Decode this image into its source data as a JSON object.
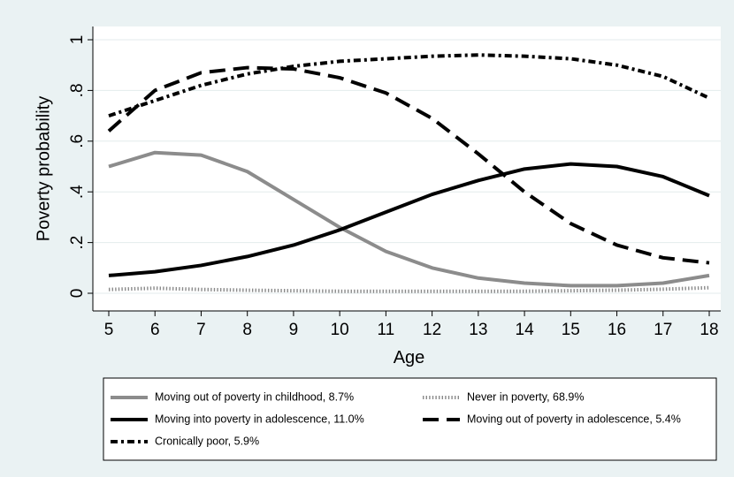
{
  "chart_data": {
    "type": "line",
    "title": "",
    "xlabel": "Age",
    "ylabel": "Poverty probability",
    "xlim": [
      5,
      18
    ],
    "ylim": [
      0,
      1
    ],
    "x_ticks": [
      "5",
      "6",
      "7",
      "8",
      "9",
      "10",
      "11",
      "12",
      "13",
      "14",
      "15",
      "16",
      "17",
      "18"
    ],
    "y_ticks": [
      {
        "value": 0,
        "label": "0"
      },
      {
        "value": 0.2,
        "label": ".2"
      },
      {
        "value": 0.4,
        "label": ".4"
      },
      {
        "value": 0.6,
        "label": ".6"
      },
      {
        "value": 0.8,
        "label": ".8"
      },
      {
        "value": 1,
        "label": "1"
      }
    ],
    "grid": "horizontal",
    "legend_position": "bottom",
    "x": [
      5,
      6,
      7,
      8,
      9,
      10,
      11,
      12,
      13,
      14,
      15,
      16,
      17,
      18
    ],
    "series": [
      {
        "name": "Moving out of poverty in childhood, 8.7%",
        "color": "#8c8c8c",
        "style": "solid",
        "values": [
          0.5,
          0.555,
          0.545,
          0.48,
          0.37,
          0.26,
          0.165,
          0.1,
          0.06,
          0.04,
          0.03,
          0.03,
          0.04,
          0.07
        ]
      },
      {
        "name": "Never in poverty, 68.9%",
        "color": "#8a8a8a",
        "style": "dotted",
        "values": [
          0.015,
          0.02,
          0.015,
          0.012,
          0.01,
          0.008,
          0.008,
          0.008,
          0.008,
          0.008,
          0.01,
          0.012,
          0.016,
          0.022
        ]
      },
      {
        "name": "Moving into poverty in adolescence, 11.0%",
        "color": "#000000",
        "style": "solid",
        "values": [
          0.07,
          0.085,
          0.11,
          0.145,
          0.19,
          0.25,
          0.32,
          0.39,
          0.445,
          0.49,
          0.51,
          0.5,
          0.46,
          0.385
        ]
      },
      {
        "name": "Moving out of poverty in adolescence, 5.4%",
        "color": "#000000",
        "style": "dashed",
        "values": [
          0.64,
          0.8,
          0.87,
          0.89,
          0.885,
          0.85,
          0.79,
          0.69,
          0.55,
          0.4,
          0.275,
          0.19,
          0.14,
          0.12
        ]
      },
      {
        "name": "Cronically poor, 5.9%",
        "color": "#000000",
        "style": "dashdot",
        "values": [
          0.7,
          0.76,
          0.82,
          0.865,
          0.895,
          0.915,
          0.925,
          0.935,
          0.94,
          0.935,
          0.925,
          0.9,
          0.855,
          0.77
        ]
      }
    ]
  }
}
